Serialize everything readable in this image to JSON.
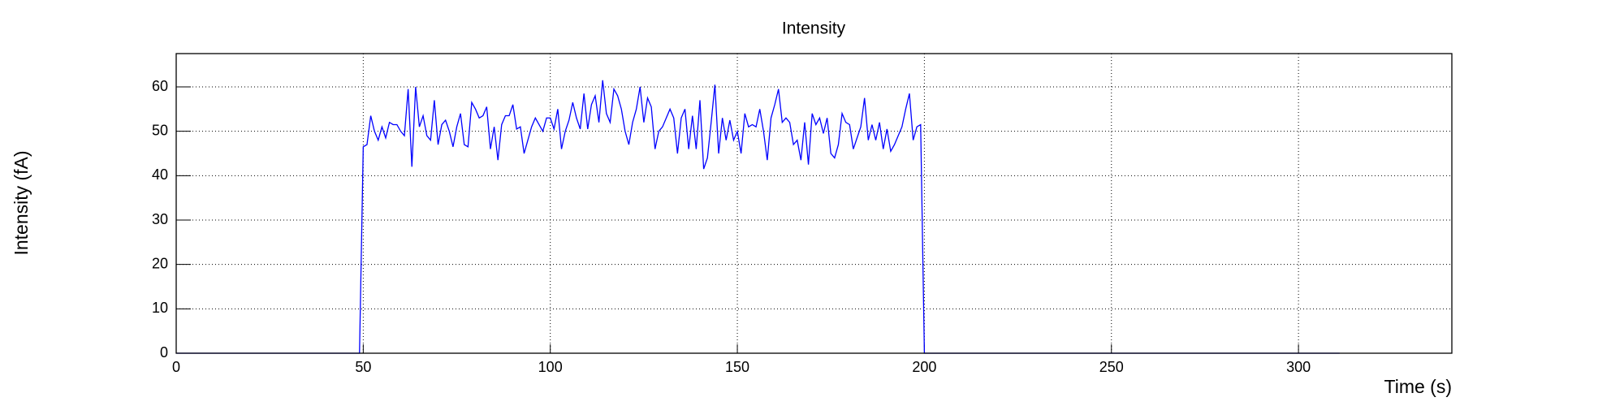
{
  "chart_data": {
    "type": "line",
    "title": "Intensity",
    "x_label": "Time (s)",
    "y_label": "Intensity (fA)",
    "x": [
      0,
      49,
      50,
      51,
      52,
      53,
      54,
      55,
      56,
      57,
      58,
      59,
      60,
      61,
      62,
      63,
      64,
      65,
      66,
      67,
      68,
      69,
      70,
      71,
      72,
      73,
      74,
      75,
      76,
      77,
      78,
      79,
      80,
      81,
      82,
      83,
      84,
      85,
      86,
      87,
      88,
      89,
      90,
      91,
      92,
      93,
      94,
      95,
      96,
      97,
      98,
      99,
      100,
      101,
      102,
      103,
      104,
      105,
      106,
      107,
      108,
      109,
      110,
      111,
      112,
      113,
      114,
      115,
      116,
      117,
      118,
      119,
      120,
      121,
      122,
      123,
      124,
      125,
      126,
      127,
      128,
      129,
      130,
      131,
      132,
      133,
      134,
      135,
      136,
      137,
      138,
      139,
      140,
      141,
      142,
      143,
      144,
      145,
      146,
      147,
      148,
      149,
      150,
      151,
      152,
      153,
      154,
      155,
      156,
      157,
      158,
      159,
      160,
      161,
      162,
      163,
      164,
      165,
      166,
      167,
      168,
      169,
      170,
      171,
      172,
      173,
      174,
      175,
      176,
      177,
      178,
      179,
      180,
      181,
      182,
      183,
      184,
      185,
      186,
      187,
      188,
      189,
      190,
      191,
      192,
      193,
      194,
      195,
      196,
      197,
      198,
      199,
      200,
      311
    ],
    "values": [
      0,
      0,
      46.5,
      47,
      53.5,
      50,
      48,
      51,
      48.5,
      52,
      51.5,
      51.5,
      50,
      49,
      59.5,
      42,
      60,
      51,
      53.5,
      49,
      48,
      57,
      47,
      51.5,
      52.5,
      50,
      46.5,
      51,
      54,
      47,
      46.5,
      56.5,
      55,
      53,
      53.5,
      55.5,
      46,
      51,
      43.5,
      51.5,
      53.5,
      53.5,
      56,
      50.5,
      51,
      45,
      48,
      51,
      53,
      51.5,
      50,
      53,
      53,
      50.5,
      55,
      46,
      50,
      52.5,
      56.5,
      53,
      50.5,
      58.5,
      50.5,
      56,
      58,
      52,
      61.5,
      54,
      52,
      59.5,
      58,
      55,
      50,
      47,
      52,
      55,
      60,
      52,
      57.5,
      55.5,
      46,
      50,
      51,
      53,
      55,
      53,
      45,
      53,
      55,
      46,
      53.5,
      46,
      57,
      41.5,
      44,
      52,
      60.5,
      45,
      53,
      48,
      52.5,
      48,
      50,
      45,
      54,
      51,
      51.5,
      51,
      55,
      50,
      43.5,
      53,
      56,
      59.5,
      52,
      53,
      52,
      47,
      48,
      43.5,
      52,
      42.5,
      54,
      51.5,
      53,
      49.5,
      53,
      45,
      44,
      47,
      54,
      52,
      51.5,
      46,
      48.5,
      51,
      57.5,
      48,
      51.5,
      48,
      52,
      46,
      50.5,
      45.5,
      47,
      49,
      51,
      55,
      58.5,
      48,
      51,
      51.5,
      0,
      0
    ],
    "color": "#0000ff",
    "xlim": [
      0,
      341
    ],
    "ylim": [
      0,
      67.5
    ],
    "xticks": [
      0,
      50,
      100,
      150,
      200,
      250,
      300
    ],
    "yticks": [
      0,
      10,
      20,
      30,
      40,
      50,
      60
    ],
    "grid": true
  }
}
